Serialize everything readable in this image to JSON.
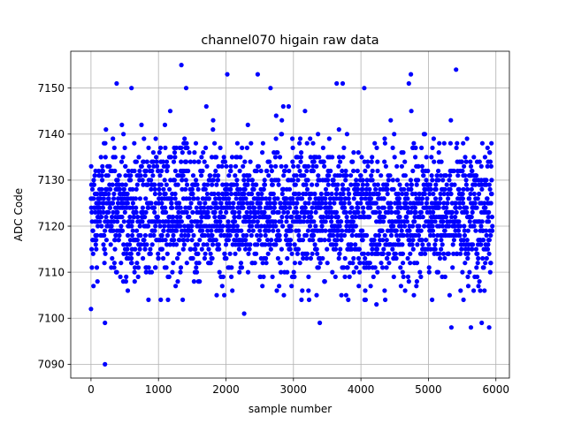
{
  "chart_data": {
    "type": "scatter",
    "title": "channel070 higain raw data",
    "xlabel": "sample number",
    "ylabel": "ADC Code",
    "xlim": [
      -300,
      6200
    ],
    "ylim": [
      7087,
      7158
    ],
    "xticks": [
      0,
      1000,
      2000,
      3000,
      4000,
      5000,
      6000
    ],
    "yticks": [
      7090,
      7100,
      7110,
      7120,
      7130,
      7140,
      7150
    ],
    "grid": true,
    "marker_color": "#0000ff",
    "n_samples": 5950,
    "typical_range": [
      7104,
      7146
    ],
    "baseline_mean": 7123,
    "outliers": [
      {
        "x": 207,
        "y": 7090
      },
      {
        "x": 207,
        "y": 7099
      },
      {
        "x": 0,
        "y": 7102
      },
      {
        "x": 1340,
        "y": 7155
      },
      {
        "x": 5410,
        "y": 7154
      },
      {
        "x": 2470,
        "y": 7153
      },
      {
        "x": 4740,
        "y": 7153
      },
      {
        "x": 2020,
        "y": 7153
      },
      {
        "x": 380,
        "y": 7151
      },
      {
        "x": 3640,
        "y": 7151
      },
      {
        "x": 3730,
        "y": 7151
      },
      {
        "x": 4710,
        "y": 7151
      },
      {
        "x": 4050,
        "y": 7150
      },
      {
        "x": 600,
        "y": 7150
      },
      {
        "x": 1410,
        "y": 7150
      },
      {
        "x": 2660,
        "y": 7150
      },
      {
        "x": 2270,
        "y": 7101
      },
      {
        "x": 3390,
        "y": 7099
      },
      {
        "x": 5340,
        "y": 7098
      },
      {
        "x": 5630,
        "y": 7098
      },
      {
        "x": 5900,
        "y": 7098
      },
      {
        "x": 5790,
        "y": 7099
      },
      {
        "x": 4230,
        "y": 7103
      },
      {
        "x": 5520,
        "y": 7104
      }
    ]
  }
}
